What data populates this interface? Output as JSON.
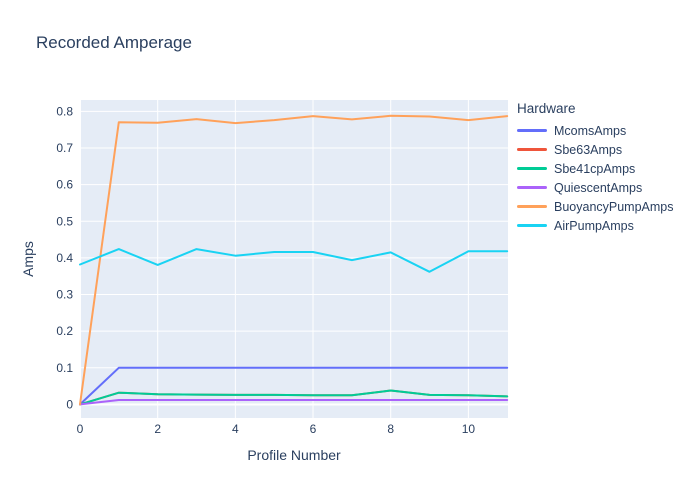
{
  "colors": {
    "text": "#2a3f5f",
    "plot_bg": "#e5ecf6",
    "grid": "#ffffff",
    "paper": "#ffffff"
  },
  "chart_data": {
    "type": "line",
    "title": "Recorded Amperage",
    "xlabel": "Profile Number",
    "ylabel": "Amps",
    "legend_title": "Hardware",
    "legend_position": "right",
    "grid": true,
    "x": [
      0,
      1,
      2,
      3,
      4,
      5,
      6,
      7,
      8,
      9,
      10,
      11
    ],
    "series": [
      {
        "name": "McomsAmps",
        "color": "#636efa",
        "values": [
          0,
          0.1,
          0.1,
          0.1,
          0.1,
          0.1,
          0.1,
          0.1,
          0.1,
          0.1,
          0.1,
          0.1
        ]
      },
      {
        "name": "Sbe63Amps",
        "color": "#ef553b",
        "values": [
          0,
          0.032,
          0.028,
          0.027,
          0.026,
          0.026,
          0.025,
          0.025,
          0.038,
          0.026,
          0.025,
          0.022
        ]
      },
      {
        "name": "Sbe41cpAmps",
        "color": "#00cc96",
        "values": [
          0,
          0.032,
          0.028,
          0.027,
          0.026,
          0.026,
          0.025,
          0.025,
          0.038,
          0.026,
          0.025,
          0.022
        ]
      },
      {
        "name": "QuiescentAmps",
        "color": "#ab63fa",
        "values": [
          0,
          0.012,
          0.012,
          0.012,
          0.012,
          0.012,
          0.012,
          0.012,
          0.012,
          0.012,
          0.012,
          0.012
        ]
      },
      {
        "name": "BuoyancyPumpAmps",
        "color": "#ffa15a",
        "values": [
          0,
          0.77,
          0.769,
          0.779,
          0.768,
          0.776,
          0.787,
          0.778,
          0.788,
          0.786,
          0.776,
          0.787
        ]
      },
      {
        "name": "AirPumpAmps",
        "color": "#19d3f3",
        "values": [
          0.382,
          0.424,
          0.381,
          0.424,
          0.406,
          0.416,
          0.416,
          0.394,
          0.415,
          0.362,
          0.418,
          0.418
        ]
      }
    ],
    "xticks": [
      0,
      2,
      4,
      6,
      8,
      10
    ],
    "xtick_labels": [
      "0",
      "2",
      "4",
      "6",
      "8",
      "10"
    ],
    "yticks": [
      0,
      0.1,
      0.2,
      0.3,
      0.4,
      0.5,
      0.6,
      0.7,
      0.8
    ],
    "ytick_labels": [
      "0",
      "0.1",
      "0.2",
      "0.3",
      "0.4",
      "0.5",
      "0.6",
      "0.7",
      "0.8"
    ],
    "xlim": [
      0,
      11.02
    ],
    "ylim": [
      -0.037,
      0.831
    ]
  }
}
